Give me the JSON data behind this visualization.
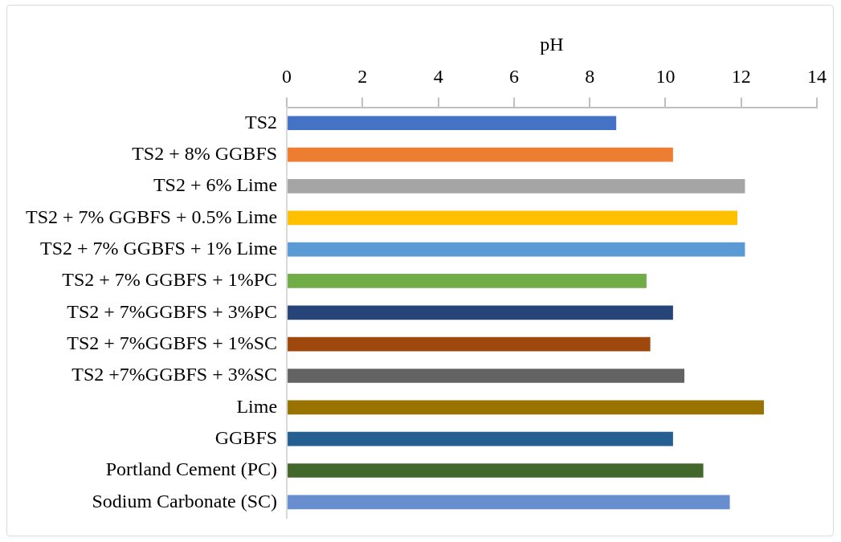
{
  "chart_data": {
    "type": "bar",
    "orientation": "horizontal",
    "xlabel": "pH",
    "categories": [
      "TS2",
      "TS2 + 8% GGBFS",
      "TS2 + 6% Lime",
      "TS2 + 7% GGBFS + 0.5% Lime",
      "TS2 + 7% GGBFS + 1% Lime",
      "TS2 + 7% GGBFS + 1%PC",
      "TS2 + 7%GGBFS + 3%PC",
      "TS2 + 7%GGBFS + 1%SC",
      "TS2 +7%GGBFS + 3%SC",
      "Lime",
      "GGBFS",
      "Portland Cement (PC)",
      "Sodium Carbonate (SC)"
    ],
    "values": [
      8.7,
      10.2,
      12.1,
      11.9,
      12.1,
      9.5,
      10.2,
      9.6,
      10.5,
      12.6,
      10.2,
      11.0,
      11.7
    ],
    "colors": [
      "#4472c4",
      "#ed7d31",
      "#a5a5a5",
      "#ffc000",
      "#5b9bd5",
      "#70ad47",
      "#264478",
      "#9e480e",
      "#636363",
      "#997300",
      "#255e91",
      "#43682b",
      "#698ed0"
    ],
    "xlim": [
      0,
      14
    ],
    "xticks": [
      0,
      2,
      4,
      6,
      8,
      10,
      12,
      14
    ],
    "grid": false,
    "legend": false
  }
}
